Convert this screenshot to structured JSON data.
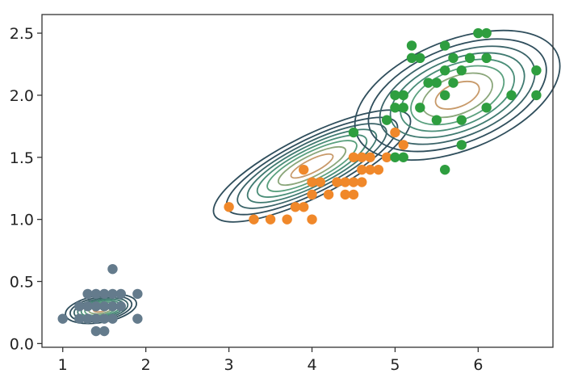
{
  "chart_data": {
    "type": "scatter",
    "title": "",
    "xlabel": "",
    "ylabel": "",
    "xlim": [
      0.75,
      6.9
    ],
    "ylim": [
      -0.03,
      2.65
    ],
    "grid": false,
    "x_ticks": [
      "1",
      "2",
      "3",
      "4",
      "5",
      "6"
    ],
    "x_tick_values": [
      1,
      2,
      3,
      4,
      5,
      6
    ],
    "y_ticks": [
      "0.0",
      "0.5",
      "1.0",
      "1.5",
      "2.0",
      "2.5"
    ],
    "y_tick_values": [
      0.0,
      0.5,
      1.0,
      1.5,
      2.0,
      2.5
    ],
    "series": [
      {
        "color": "#647b8c",
        "points": [
          [
            1.0,
            0.2
          ],
          [
            1.2,
            0.2
          ],
          [
            1.3,
            0.2
          ],
          [
            1.3,
            0.3
          ],
          [
            1.3,
            0.4
          ],
          [
            1.4,
            0.2
          ],
          [
            1.4,
            0.3
          ],
          [
            1.4,
            0.4
          ],
          [
            1.4,
            0.1
          ],
          [
            1.5,
            0.2
          ],
          [
            1.5,
            0.3
          ],
          [
            1.5,
            0.4
          ],
          [
            1.5,
            0.1
          ],
          [
            1.6,
            0.2
          ],
          [
            1.6,
            0.6
          ],
          [
            1.6,
            0.4
          ],
          [
            1.7,
            0.3
          ],
          [
            1.7,
            0.4
          ],
          [
            1.9,
            0.2
          ],
          [
            1.9,
            0.4
          ],
          [
            1.2,
            0.3
          ],
          [
            1.6,
            0.3
          ]
        ]
      },
      {
        "color": "#f0882a",
        "points": [
          [
            3.0,
            1.1
          ],
          [
            3.3,
            1.0
          ],
          [
            3.5,
            1.0
          ],
          [
            3.7,
            1.0
          ],
          [
            3.8,
            1.1
          ],
          [
            3.9,
            1.1
          ],
          [
            4.0,
            1.0
          ],
          [
            3.9,
            1.4
          ],
          [
            4.0,
            1.2
          ],
          [
            4.0,
            1.3
          ],
          [
            4.1,
            1.3
          ],
          [
            4.2,
            1.2
          ],
          [
            4.3,
            1.3
          ],
          [
            4.4,
            1.2
          ],
          [
            4.4,
            1.3
          ],
          [
            4.5,
            1.5
          ],
          [
            4.5,
            1.3
          ],
          [
            4.6,
            1.4
          ],
          [
            4.6,
            1.3
          ],
          [
            4.7,
            1.4
          ],
          [
            4.7,
            1.5
          ],
          [
            4.8,
            1.4
          ],
          [
            4.9,
            1.5
          ],
          [
            5.0,
            1.7
          ],
          [
            5.1,
            1.6
          ],
          [
            4.5,
            1.2
          ],
          [
            4.6,
            1.5
          ]
        ]
      },
      {
        "color": "#2e9e3f",
        "points": [
          [
            4.5,
            1.7
          ],
          [
            4.9,
            1.8
          ],
          [
            5.0,
            1.5
          ],
          [
            5.0,
            2.0
          ],
          [
            5.1,
            1.9
          ],
          [
            5.1,
            1.5
          ],
          [
            5.1,
            2.0
          ],
          [
            5.2,
            2.3
          ],
          [
            5.3,
            2.3
          ],
          [
            5.3,
            1.9
          ],
          [
            5.4,
            2.1
          ],
          [
            5.5,
            1.8
          ],
          [
            5.5,
            2.1
          ],
          [
            5.6,
            1.4
          ],
          [
            5.6,
            2.2
          ],
          [
            5.6,
            2.4
          ],
          [
            5.7,
            2.1
          ],
          [
            5.7,
            2.3
          ],
          [
            5.8,
            1.8
          ],
          [
            5.8,
            2.2
          ],
          [
            5.8,
            1.6
          ],
          [
            5.9,
            2.3
          ],
          [
            6.0,
            2.5
          ],
          [
            6.1,
            2.3
          ],
          [
            6.1,
            2.5
          ],
          [
            6.1,
            1.9
          ],
          [
            6.4,
            2.0
          ],
          [
            6.7,
            2.0
          ],
          [
            6.7,
            2.2
          ],
          [
            5.2,
            2.4
          ],
          [
            5.0,
            1.9
          ],
          [
            5.6,
            2.0
          ]
        ]
      }
    ],
    "contour_levels": [
      0.06,
      0.12,
      0.2,
      0.3,
      0.42,
      0.56,
      0.72,
      0.88
    ],
    "contour_colors": [
      "#2f4e5c",
      "#2f4e5c",
      "#3a6368",
      "#3f7a70",
      "#4a8e78",
      "#5aa07e",
      "#8aa67a",
      "#c89a6a"
    ],
    "gaussians": [
      {
        "mean": [
          1.46,
          0.28
        ],
        "std": [
          0.18,
          0.05
        ],
        "rho": 0.35
      },
      {
        "mean": [
          4.0,
          1.43
        ],
        "std": [
          0.5,
          0.19
        ],
        "rho": 0.8
      },
      {
        "mean": [
          5.75,
          2.0
        ],
        "std": [
          0.52,
          0.22
        ],
        "rho": 0.45
      }
    ]
  }
}
